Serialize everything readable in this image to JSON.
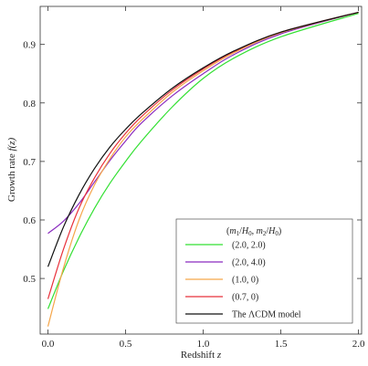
{
  "chart_data": {
    "type": "line",
    "xlabel": "Redshift",
    "xlabel_var": "z",
    "ylabel": "Growth rate",
    "ylabel_var": "f(z)",
    "xlim": [
      -0.05,
      2.02
    ],
    "ylim": [
      0.405,
      0.965
    ],
    "x_ticks": [
      0.0,
      0.5,
      1.0,
      1.5,
      2.0
    ],
    "x_tick_labels": [
      "0.0",
      "0.5",
      "1.0",
      "1.5",
      "2.0"
    ],
    "y_ticks": [
      0.5,
      0.6,
      0.7,
      0.8,
      0.9
    ],
    "y_tick_labels": [
      "0.5",
      "0.6",
      "0.7",
      "0.8",
      "0.9"
    ],
    "grid": false,
    "legend": {
      "placement": "bottom-right",
      "title": "(m1/H0, m2/H0)"
    },
    "series": [
      {
        "name": "(2.0, 2.0)",
        "color": "#33e033",
        "x": [
          0.0,
          0.1,
          0.2,
          0.3,
          0.4,
          0.5,
          0.6,
          0.8,
          1.0,
          1.2,
          1.5,
          2.0
        ],
        "y": [
          0.448,
          0.513,
          0.57,
          0.62,
          0.663,
          0.7,
          0.734,
          0.793,
          0.842,
          0.877,
          0.913,
          0.953
        ]
      },
      {
        "name": "(2.0, 4.0)",
        "color": "#8a2bbf",
        "x": [
          0.0,
          0.1,
          0.2,
          0.3,
          0.4,
          0.5,
          0.6,
          0.8,
          1.0,
          1.2,
          1.5,
          2.0
        ],
        "y": [
          0.577,
          0.598,
          0.628,
          0.665,
          0.702,
          0.735,
          0.765,
          0.812,
          0.85,
          0.883,
          0.918,
          0.955
        ]
      },
      {
        "name": "(1.0, 0)",
        "color": "#f5a64a",
        "x": [
          0.0,
          0.1,
          0.2,
          0.3,
          0.4,
          0.5,
          0.6,
          0.8,
          1.0,
          1.2,
          1.5,
          2.0
        ],
        "y": [
          0.418,
          0.518,
          0.6,
          0.66,
          0.705,
          0.742,
          0.77,
          0.818,
          0.855,
          0.886,
          0.92,
          0.955
        ]
      },
      {
        "name": "(0.7, 0)",
        "color": "#e8303a",
        "x": [
          0.0,
          0.1,
          0.2,
          0.3,
          0.4,
          0.5,
          0.6,
          0.8,
          1.0,
          1.2,
          1.5,
          2.0
        ],
        "y": [
          0.465,
          0.55,
          0.62,
          0.672,
          0.714,
          0.748,
          0.776,
          0.822,
          0.858,
          0.888,
          0.921,
          0.955
        ]
      },
      {
        "name": "The ΛCDM model",
        "color": "#111111",
        "x": [
          0.0,
          0.1,
          0.2,
          0.3,
          0.4,
          0.5,
          0.6,
          0.8,
          1.0,
          1.2,
          1.5,
          2.0
        ],
        "y": [
          0.52,
          0.588,
          0.643,
          0.688,
          0.725,
          0.755,
          0.781,
          0.825,
          0.86,
          0.889,
          0.921,
          0.955
        ]
      }
    ]
  }
}
